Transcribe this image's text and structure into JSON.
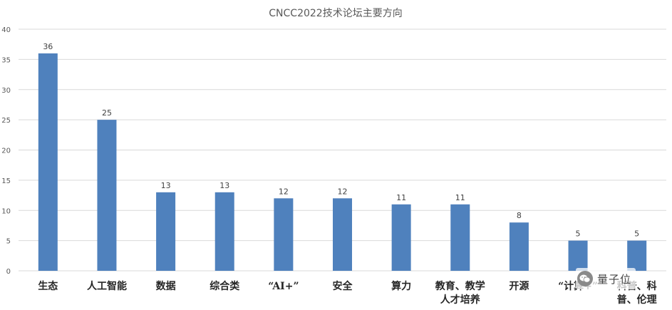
{
  "chart_data": {
    "type": "bar",
    "title": "CNCC2022技术论坛主要方向",
    "xlabel": "",
    "ylabel": "",
    "ylim": [
      0,
      40
    ],
    "yticks": [
      0,
      5,
      10,
      15,
      20,
      25,
      30,
      35,
      40
    ],
    "grid": true,
    "legend": "none",
    "bar_color": "#4f81bd",
    "categories": [
      [
        "生态"
      ],
      [
        "人工智能"
      ],
      [
        "数据"
      ],
      [
        "综合类"
      ],
      [
        "“AI+”"
      ],
      [
        "安全"
      ],
      [
        "算力"
      ],
      [
        "教育、教学",
        "人才培养"
      ],
      [
        "开源"
      ],
      [
        "“计算+”"
      ],
      [
        "科普、科",
        "普、伦理"
      ]
    ],
    "values": [
      36,
      25,
      13,
      13,
      12,
      12,
      11,
      11,
      8,
      5,
      5
    ]
  },
  "watermark": {
    "text": "量子位",
    "icon": "wechat-icon"
  }
}
